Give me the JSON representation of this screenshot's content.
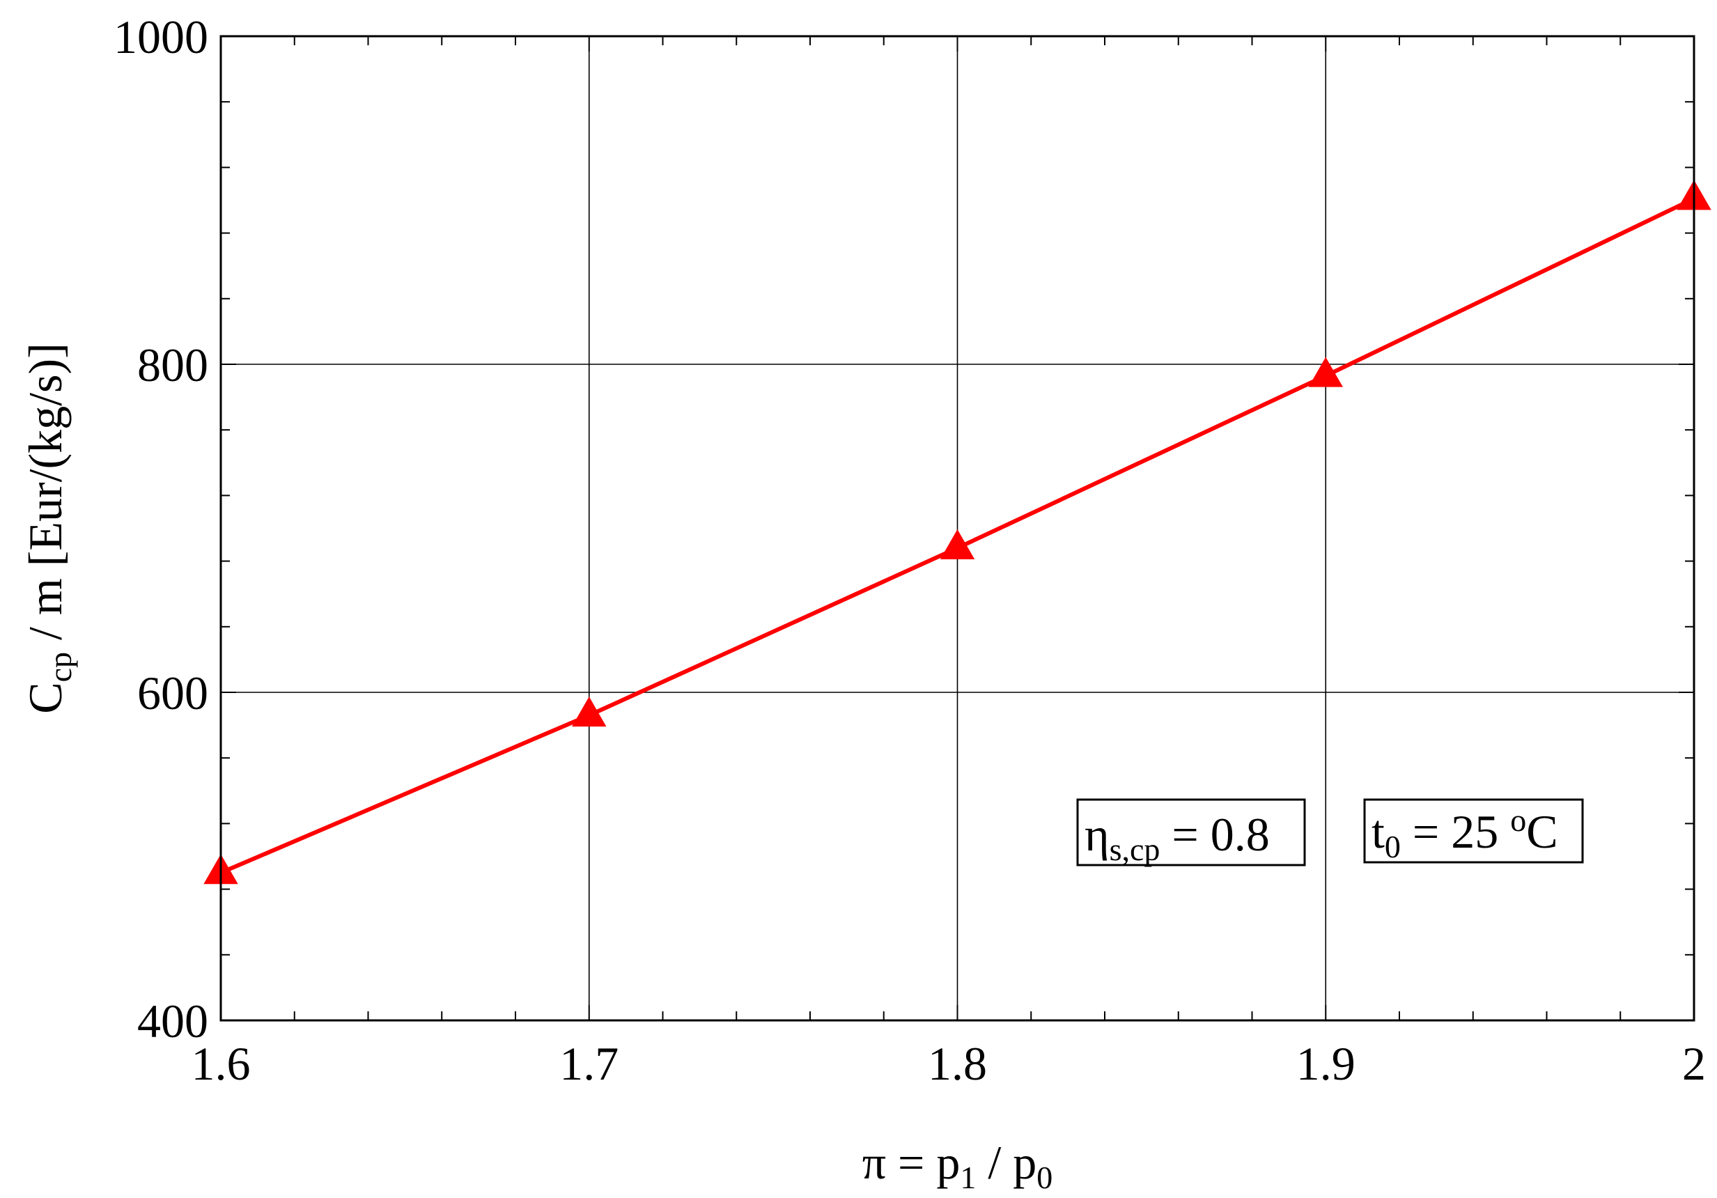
{
  "chart_data": {
    "type": "line",
    "x": [
      1.6,
      1.7,
      1.8,
      1.9,
      2.0
    ],
    "series": [
      {
        "color": "#ff0000",
        "marker": "triangle",
        "values": [
          490,
          586,
          688,
          793,
          901
        ]
      }
    ],
    "xlim": [
      1.6,
      2.0
    ],
    "ylim": [
      400,
      1000
    ],
    "xticks": [
      "1.6",
      "1.7",
      "1.8",
      "1.9",
      "2"
    ],
    "yticks": [
      "400",
      "600",
      "800",
      "1000"
    ],
    "x_minor_step": 0.02,
    "y_minor_step": 40,
    "grid": true,
    "xlabel": {
      "pi": "π",
      "eq": " = p",
      "sub1": "1",
      "slash": " / p",
      "sub0": "0"
    },
    "ylabel": {
      "c": "C",
      "sub": "cp",
      "rest": " / m  [Eur/(kg/s)]"
    },
    "annotations": {
      "eta": {
        "symbol": "η",
        "sub": "s,cp",
        "value": " = 0.8"
      },
      "temp": {
        "t": "t",
        "sub": "0",
        "value": " = 25 ",
        "sup": "o",
        "unit": "C"
      }
    }
  }
}
